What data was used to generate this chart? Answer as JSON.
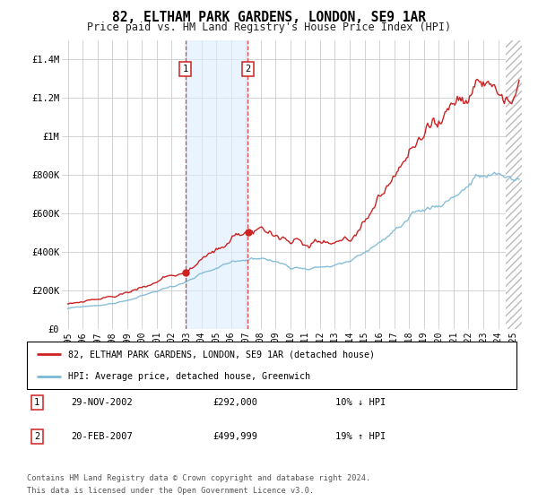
{
  "title": "82, ELTHAM PARK GARDENS, LONDON, SE9 1AR",
  "subtitle": "Price paid vs. HM Land Registry's House Price Index (HPI)",
  "ylim": [
    0,
    1500000
  ],
  "yticks": [
    0,
    200000,
    400000,
    600000,
    800000,
    1000000,
    1200000,
    1400000
  ],
  "ytick_labels": [
    "£0",
    "£200K",
    "£400K",
    "£600K",
    "£800K",
    "£1M",
    "£1.2M",
    "£1.4M"
  ],
  "transaction1": {
    "date_num": 2002.91,
    "price": 292000,
    "label": "1",
    "date_str": "29-NOV-2002",
    "pct": "10% ↓ HPI"
  },
  "transaction2": {
    "date_num": 2007.13,
    "price": 499999,
    "label": "2",
    "date_str": "20-FEB-2007",
    "pct": "19% ↑ HPI"
  },
  "hpi_line_color": "#7bb8d4",
  "price_line_color": "#cc2222",
  "shade_color": "#ddeeff",
  "shade_alpha": 0.6,
  "footer": "Contains HM Land Registry data © Crown copyright and database right 2024.\nThis data is licensed under the Open Government Licence v3.0.",
  "legend_line1": "82, ELTHAM PARK GARDENS, LONDON, SE9 1AR (detached house)",
  "legend_line2": "HPI: Average price, detached house, Greenwich",
  "table_rows": [
    [
      "1",
      "29-NOV-2002",
      "£292,000",
      "10% ↓ HPI"
    ],
    [
      "2",
      "20-FEB-2007",
      "£499,999",
      "19% ↑ HPI"
    ]
  ]
}
